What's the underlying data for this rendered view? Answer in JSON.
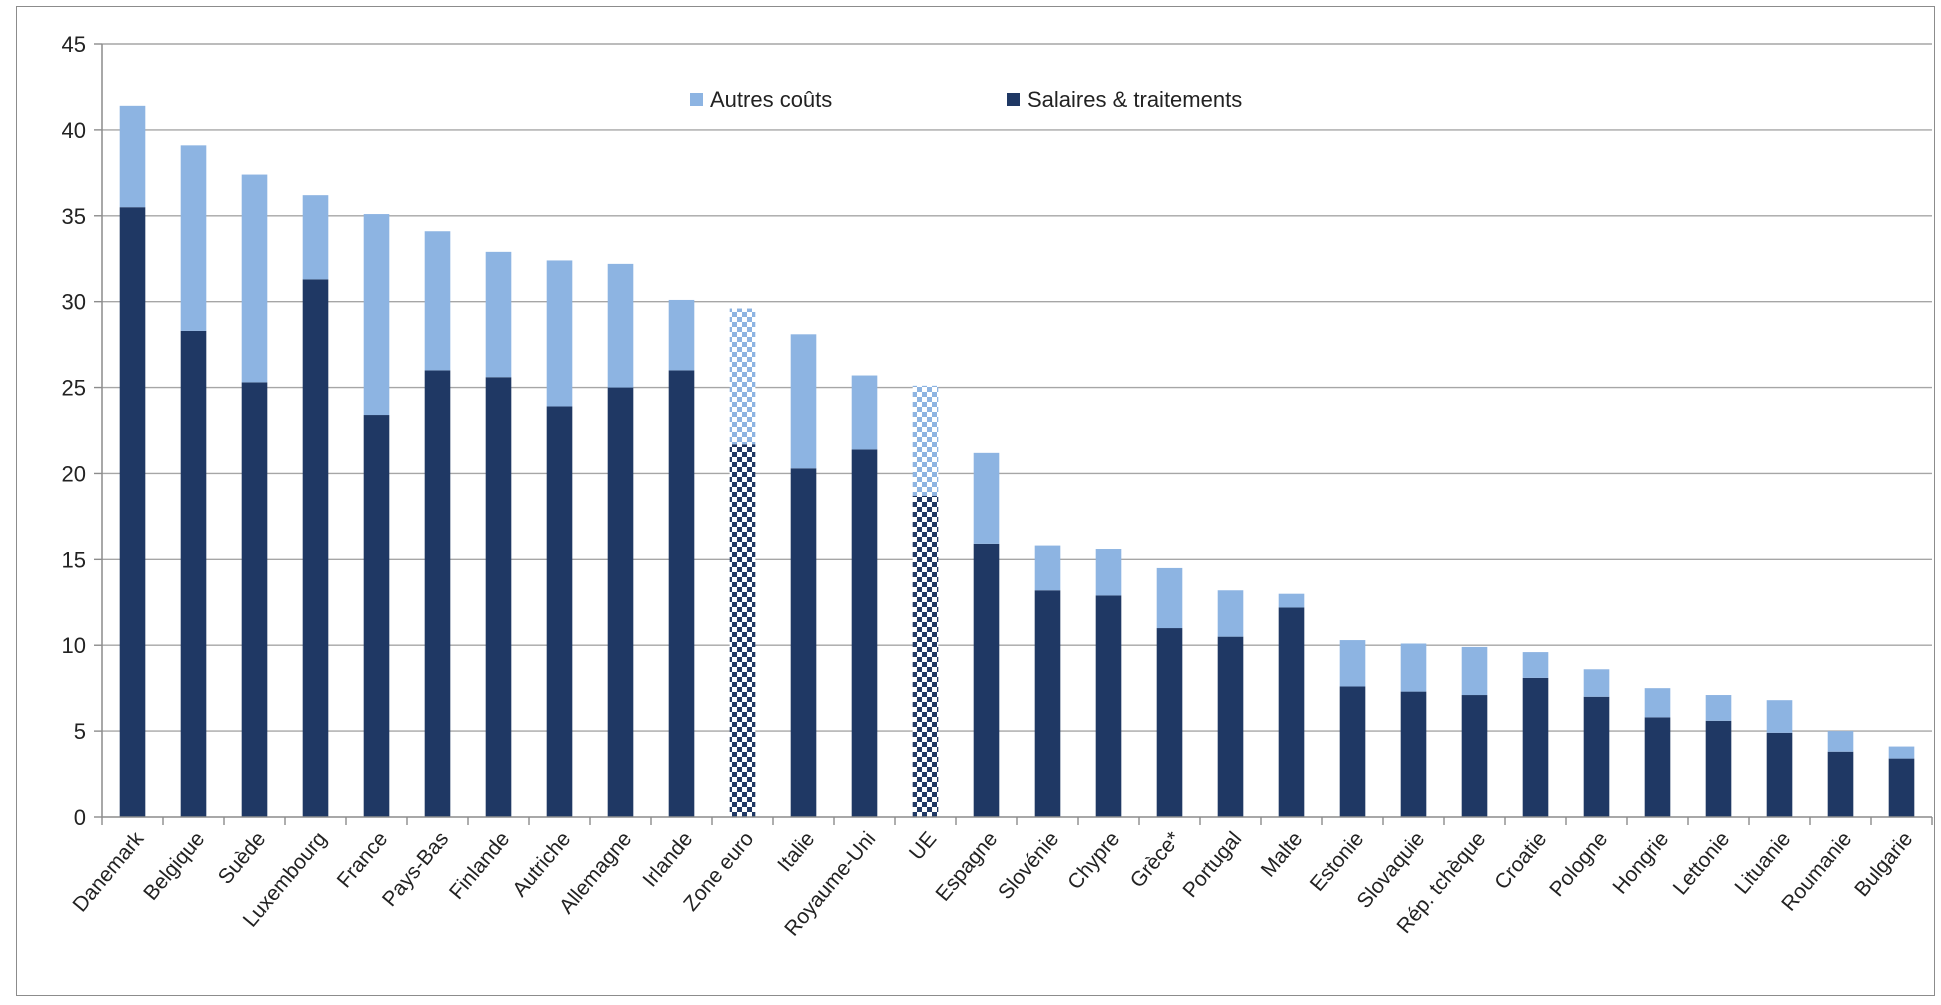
{
  "chart_data": {
    "type": "bar",
    "stacked": true,
    "categories": [
      "Danemark",
      "Belgique",
      "Suède",
      "Luxembourg",
      "France",
      "Pays-Bas",
      "Finlande",
      "Autriche",
      "Allemagne",
      "Irlande",
      "Zone euro",
      "Italie",
      "Royaume-Uni",
      "UE",
      "Espagne",
      "Slovénie",
      "Chypre",
      "Grèce*",
      "Portugal",
      "Malte",
      "Estonie",
      "Slovaquie",
      "Rép. tchèque",
      "Croatie",
      "Pologne",
      "Hongrie",
      "Lettonie",
      "Lituanie",
      "Roumanie",
      "Bulgarie"
    ],
    "series": [
      {
        "name": "Salaires & traitements",
        "color": "#1f3864",
        "values": [
          35.5,
          28.3,
          25.3,
          31.3,
          23.4,
          26.0,
          25.6,
          23.9,
          25.0,
          26.0,
          21.7,
          20.3,
          21.4,
          18.7,
          15.9,
          13.2,
          12.9,
          11.0,
          10.5,
          12.2,
          7.6,
          7.3,
          7.1,
          8.1,
          7.0,
          5.8,
          5.6,
          4.9,
          3.8,
          3.4
        ]
      },
      {
        "name": "Autres coûts",
        "color": "#8db4e2",
        "values": [
          5.9,
          10.8,
          12.1,
          4.9,
          11.7,
          8.1,
          7.3,
          8.5,
          7.2,
          4.1,
          7.9,
          7.8,
          4.3,
          6.4,
          5.3,
          2.6,
          2.7,
          3.5,
          2.7,
          0.8,
          2.7,
          2.8,
          2.8,
          1.5,
          1.6,
          1.7,
          1.5,
          1.9,
          1.2,
          0.7
        ]
      }
    ],
    "checkered_categories": [
      "Zone euro",
      "UE"
    ],
    "ylim": [
      0,
      45
    ],
    "y_ticks": [
      0,
      5,
      10,
      15,
      20,
      25,
      30,
      35,
      40,
      45
    ],
    "grid": true,
    "legend_position": "top-center",
    "title": "",
    "xlabel": "",
    "ylabel": ""
  }
}
